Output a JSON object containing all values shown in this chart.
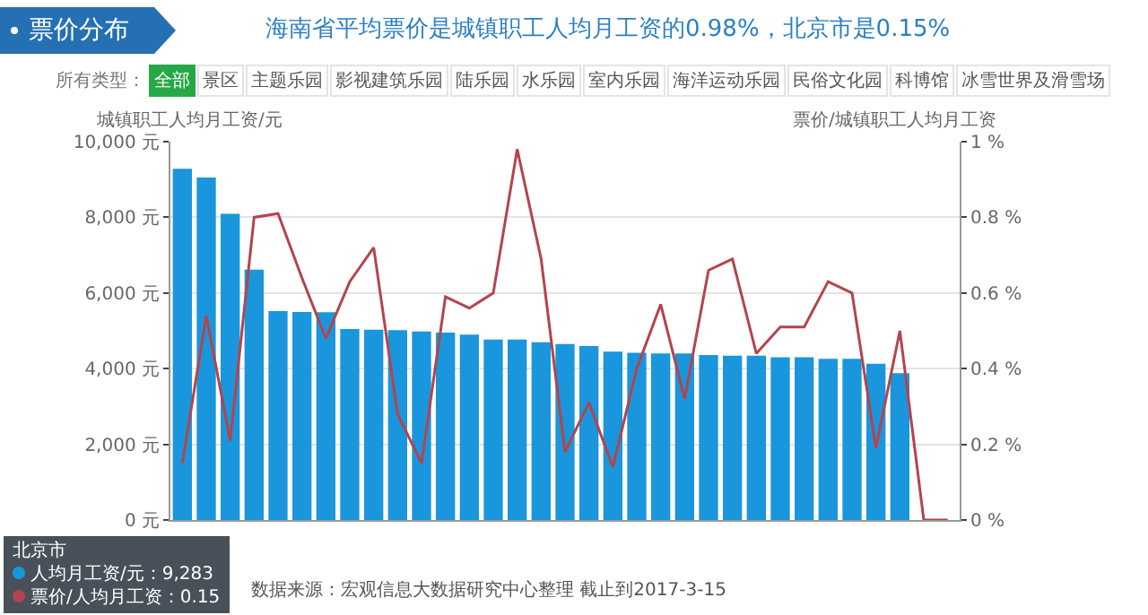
{
  "chart_data": {
    "type": "bar",
    "title": "票价分布",
    "subtitle": "海南省平均票价是城镇职工人均月工资的0.98%，北京市是0.15%",
    "ylabel": "城镇职工人均月工资/元",
    "y2label": "票价/城镇职工人均月工资",
    "categories": [
      null,
      null,
      null,
      null,
      null,
      null,
      null,
      null,
      null,
      null,
      null,
      null,
      null,
      null,
      null,
      null,
      null,
      null,
      null,
      null,
      null,
      null,
      null,
      null,
      null,
      null,
      null,
      null,
      null,
      null,
      null,
      null,
      null
    ],
    "series": [
      {
        "name": "人均月工资/元",
        "color": "#1a96dc",
        "values": [
          9283,
          9050,
          8090,
          6620,
          5520,
          5500,
          5490,
          5050,
          5030,
          5020,
          4980,
          4950,
          4900,
          4770,
          4770,
          4700,
          4650,
          4600,
          4450,
          4420,
          4400,
          4400,
          4360,
          4340,
          4340,
          4300,
          4300,
          4260,
          4260,
          4130,
          3880,
          null,
          null
        ]
      },
      {
        "name": "票价/人均月工资",
        "type": "line",
        "axis": "y2",
        "color": "#b3444e",
        "values": [
          0.15,
          0.54,
          0.21,
          0.8,
          0.81,
          0.64,
          0.48,
          0.63,
          0.72,
          0.28,
          0.15,
          0.59,
          0.56,
          0.6,
          0.98,
          0.69,
          0.18,
          0.31,
          0.14,
          0.4,
          0.57,
          0.32,
          0.66,
          0.69,
          0.44,
          0.51,
          0.51,
          0.63,
          0.6,
          0.19,
          0.5,
          0,
          0
        ]
      }
    ],
    "ylim": [
      0,
      10000
    ],
    "yticks": [
      {
        "value": 0,
        "label": "0 元"
      },
      {
        "value": 2000,
        "label": "2,000 元"
      },
      {
        "value": 4000,
        "label": "4,000 元"
      },
      {
        "value": 6000,
        "label": "6,000 元"
      },
      {
        "value": 8000,
        "label": "8,000 元"
      },
      {
        "value": 10000,
        "label": "10,000 元"
      }
    ],
    "y2lim": [
      0,
      1
    ],
    "y2ticks": [
      {
        "value": 0,
        "label": "0 %"
      },
      {
        "value": 0.2,
        "label": "0.2 %"
      },
      {
        "value": 0.4,
        "label": "0.4 %"
      },
      {
        "value": 0.6,
        "label": "0.6 %"
      },
      {
        "value": 0.8,
        "label": "0.8 %"
      },
      {
        "value": 1,
        "label": "1 %"
      }
    ],
    "grid": "y",
    "legend": false,
    "marker": "none",
    "line_style": "solid",
    "annotations": [
      "数据来源：宏观信息大数据研究中心整理 截止到2017-3-15",
      "所有类型：",
      "全部",
      "景区",
      "主题乐园",
      "影视建筑乐园",
      "陆乐园",
      "水乐园",
      "室内乐园",
      "海洋运动乐园",
      "民俗文化园",
      "科博馆",
      "冰雪世界及滑雪场",
      "北京市",
      "：9,283",
      "：0.15"
    ]
  }
}
